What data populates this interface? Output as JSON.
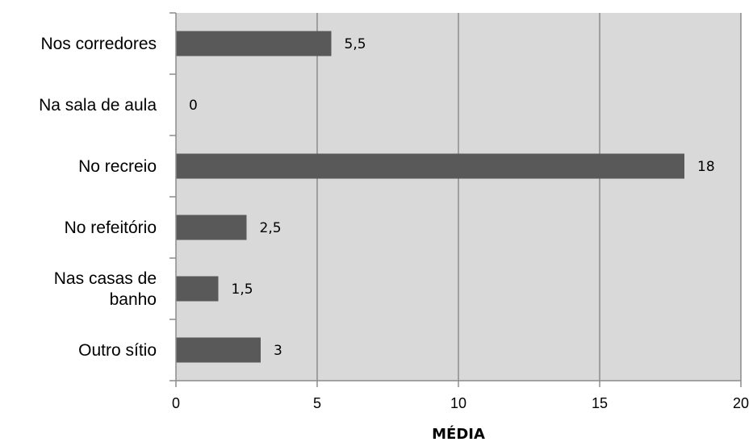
{
  "chart_data": {
    "type": "bar",
    "orientation": "horizontal",
    "categories": [
      "Nos corredores",
      "Na sala de aula",
      "No recreio",
      "No refeitório",
      "Nas casas de banho",
      "Outro sítio"
    ],
    "category_lines": [
      [
        "Nos corredores"
      ],
      [
        "Na sala de aula"
      ],
      [
        "No recreio"
      ],
      [
        "No refeitório"
      ],
      [
        "Nas casas de",
        "banho"
      ],
      [
        "Outro sítio"
      ]
    ],
    "values": [
      5.5,
      0,
      18,
      2.5,
      1.5,
      3
    ],
    "value_labels": [
      "5,5",
      "0",
      "18",
      "2,5",
      "1,5",
      "3"
    ],
    "xlabel": "MÉDIA",
    "xlim": [
      0,
      20
    ],
    "x_ticks": [
      0,
      5,
      10,
      15,
      20
    ],
    "x_tick_labels": [
      "0",
      "5",
      "10",
      "15",
      "20"
    ],
    "grid": "vertical",
    "colors": {
      "plot_background": "#d9d9d9",
      "bar": "#595959",
      "grid": "#8c8c8c",
      "axis": "#8c8c8c"
    }
  }
}
